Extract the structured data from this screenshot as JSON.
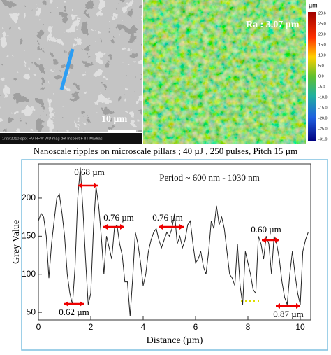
{
  "sem_image": {
    "scale_label": "10 µm",
    "info_bar": "1/29/2010   spot   HV   HFW   WD   mag   det   Inspect F IIT Madras"
  },
  "profile_image": {
    "roughness_label": "Ra : 3.07 µm",
    "colorbar": {
      "unit": "µm",
      "labels": [
        "29.6",
        "25.0",
        "20.0",
        "15.0",
        "10.0",
        "5.0",
        "0.0",
        "-5.0",
        "-10.0",
        "-15.0",
        "-20.0",
        "-25.0",
        "-31.9"
      ]
    }
  },
  "caption": "Nanoscale ripples on microscale pillars ; 40 µJ , 250 pulses, Pitch 15 µm",
  "chart_data": {
    "type": "line",
    "x_label": "Distance (µm)",
    "y_label": "Grey Value",
    "color": "#222222",
    "x": [
      0,
      0.1,
      0.2,
      0.3,
      0.4,
      0.5,
      0.6,
      0.7,
      0.8,
      0.9,
      1.0,
      1.1,
      1.2,
      1.3,
      1.4,
      1.5,
      1.6,
      1.7,
      1.8,
      1.9,
      2.0,
      2.1,
      2.2,
      2.3,
      2.4,
      2.5,
      2.6,
      2.7,
      2.8,
      2.9,
      3.0,
      3.1,
      3.2,
      3.3,
      3.4,
      3.5,
      3.6,
      3.7,
      3.8,
      3.9,
      4.0,
      4.1,
      4.2,
      4.3,
      4.4,
      4.5,
      4.6,
      4.7,
      4.8,
      4.9,
      5.0,
      5.1,
      5.2,
      5.3,
      5.4,
      5.5,
      5.6,
      5.7,
      5.8,
      5.9,
      6.0,
      6.1,
      6.2,
      6.3,
      6.4,
      6.5,
      6.6,
      6.7,
      6.8,
      6.9,
      7.0,
      7.1,
      7.2,
      7.3,
      7.4,
      7.5,
      7.6,
      7.7,
      7.8,
      7.9,
      8.0,
      8.1,
      8.2,
      8.3,
      8.4,
      8.5,
      8.6,
      8.7,
      8.8,
      8.9,
      9.0,
      9.1,
      9.2,
      9.3,
      9.4,
      9.5,
      9.6,
      9.7,
      9.8,
      9.9,
      10.0,
      10.1,
      10.2,
      10.3
    ],
    "values": [
      170,
      180,
      175,
      150,
      95,
      140,
      170,
      200,
      205,
      180,
      150,
      100,
      75,
      60,
      110,
      200,
      240,
      185,
      120,
      60,
      75,
      160,
      215,
      190,
      150,
      100,
      150,
      135,
      120,
      160,
      165,
      140,
      125,
      90,
      90,
      45,
      95,
      155,
      140,
      115,
      85,
      100,
      130,
      145,
      155,
      160,
      145,
      135,
      145,
      155,
      150,
      160,
      180,
      140,
      150,
      135,
      145,
      165,
      170,
      140,
      115,
      120,
      130,
      110,
      100,
      130,
      170,
      160,
      190,
      165,
      175,
      160,
      130,
      100,
      95,
      85,
      140,
      85,
      60,
      130,
      115,
      100,
      80,
      75,
      150,
      140,
      120,
      150,
      140,
      100,
      150,
      140,
      120,
      90,
      70,
      60,
      100,
      130,
      100,
      75,
      60,
      130,
      145,
      155
    ],
    "xlim": [
      0,
      10.4
    ],
    "ylim": [
      40,
      245
    ],
    "xticks": [
      0,
      2,
      4,
      6,
      8,
      10
    ],
    "yticks": [
      50,
      100,
      150,
      200
    ],
    "annotations": [
      "Period ~ 600 nm - 1030 nm",
      "0.68 µm",
      "0.76 µm",
      "0.76 µm",
      "0.60 µm",
      "0.62 µm",
      "0.87 µm"
    ]
  }
}
